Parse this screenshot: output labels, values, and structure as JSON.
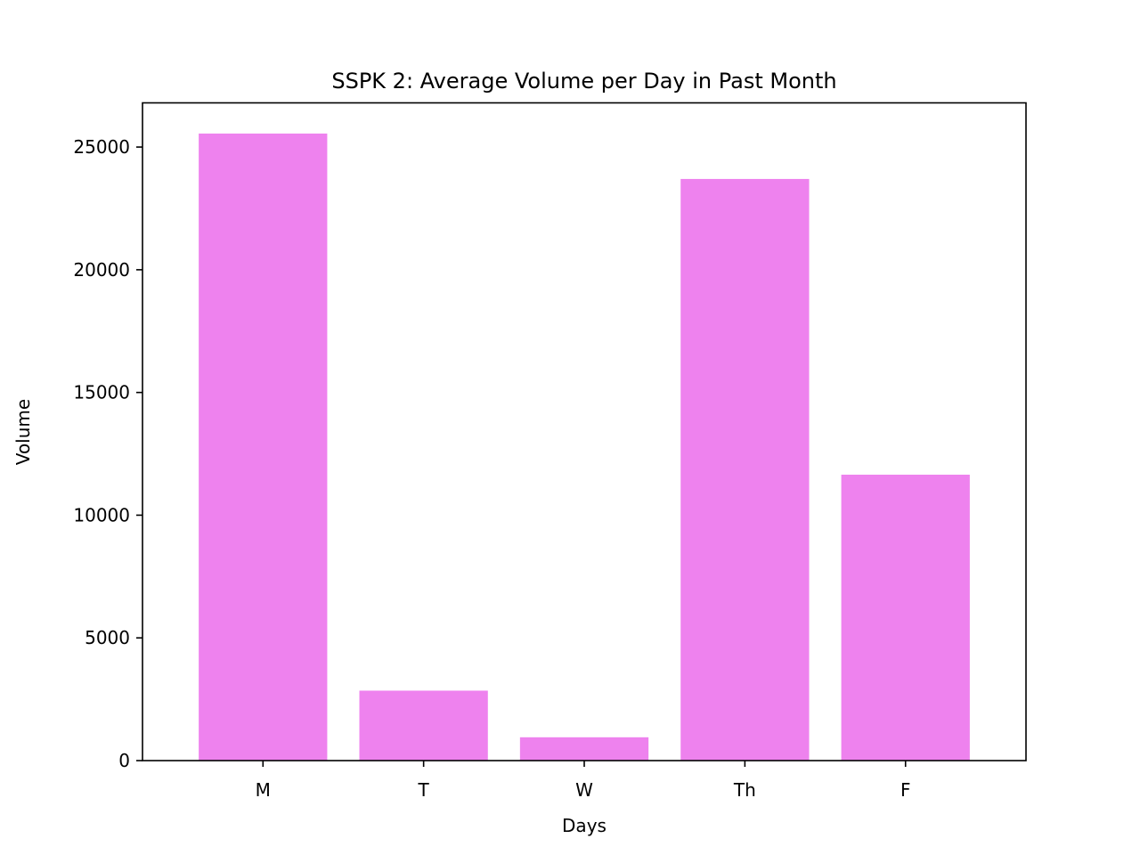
{
  "chart_data": {
    "type": "bar",
    "title": "SSPK 2: Average Volume per Day in Past Month",
    "xlabel": "Days",
    "ylabel": "Volume",
    "categories": [
      "M",
      "T",
      "W",
      "Th",
      "F"
    ],
    "values": [
      25550,
      2850,
      950,
      23700,
      11650
    ],
    "ylim": [
      0,
      26800
    ],
    "yticks": [
      0,
      5000,
      10000,
      15000,
      20000,
      25000
    ],
    "bar_color": "#ee82ee",
    "grid": false,
    "legend": "none"
  }
}
